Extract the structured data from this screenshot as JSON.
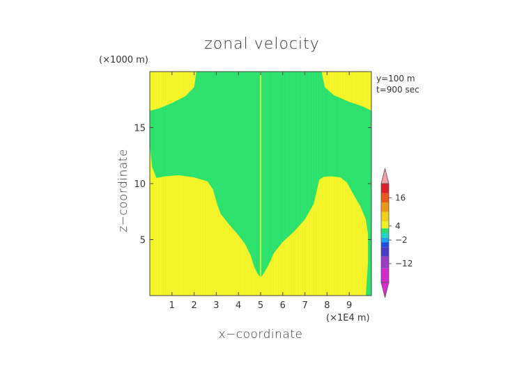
{
  "chart_data": {
    "type": "heatmap",
    "title": "zonal velocity",
    "xlabel": "x−coordinate",
    "ylabel": "z−coordinate",
    "x_unit": "(×1E4 m)",
    "y_unit": "(×1000 m)",
    "annotations": [
      "y=100 m",
      "t=900 sec"
    ],
    "xlim": [
      0,
      10
    ],
    "ylim": [
      0,
      20
    ],
    "x_ticks": [
      1,
      2,
      3,
      4,
      5,
      6,
      7,
      8,
      9
    ],
    "y_ticks": [
      5,
      10,
      15
    ],
    "background_value_color": "#f5f52a",
    "regions": [
      {
        "name": "left green region",
        "color": "#2ee36e",
        "polygon": [
          [
            0,
            16.5
          ],
          [
            0.4,
            16.7
          ],
          [
            1.0,
            17.2
          ],
          [
            1.6,
            17.8
          ],
          [
            2.0,
            18.6
          ],
          [
            2.1,
            20
          ],
          [
            5.0,
            20
          ],
          [
            5.0,
            1.6
          ],
          [
            4.85,
            2.0
          ],
          [
            4.7,
            2.6
          ],
          [
            4.55,
            3.6
          ],
          [
            4.3,
            4.6
          ],
          [
            4.0,
            5.4
          ],
          [
            3.6,
            6.3
          ],
          [
            3.2,
            7.3
          ],
          [
            3.05,
            8.1
          ],
          [
            2.85,
            9.5
          ],
          [
            2.6,
            10.2
          ],
          [
            2.0,
            10.55
          ],
          [
            1.3,
            10.75
          ],
          [
            0.7,
            10.65
          ],
          [
            0.3,
            10.5
          ],
          [
            0.1,
            11.5
          ],
          [
            0,
            13.5
          ]
        ]
      },
      {
        "name": "right green region",
        "color": "#2ee36e",
        "polygon": [
          [
            5.0,
            1.6
          ],
          [
            5.15,
            2.0
          ],
          [
            5.35,
            2.7
          ],
          [
            5.6,
            3.8
          ],
          [
            6.0,
            4.8
          ],
          [
            6.5,
            5.7
          ],
          [
            7.0,
            6.8
          ],
          [
            7.4,
            8.2
          ],
          [
            7.55,
            9.5
          ],
          [
            7.65,
            10.35
          ],
          [
            7.85,
            10.6
          ],
          [
            8.2,
            10.65
          ],
          [
            8.6,
            10.55
          ],
          [
            8.9,
            10.1
          ],
          [
            9.2,
            9.0
          ],
          [
            9.5,
            8.0
          ],
          [
            9.75,
            6.8
          ],
          [
            9.85,
            5.5
          ],
          [
            9.85,
            3.0
          ],
          [
            9.75,
            0
          ],
          [
            10,
            0
          ],
          [
            10,
            20
          ],
          [
            5.0,
            20
          ]
        ]
      },
      {
        "name": "top-right yellow patch",
        "color": "#f5f52a",
        "polygon": [
          [
            7.75,
            20
          ],
          [
            7.9,
            18.6
          ],
          [
            8.3,
            17.9
          ],
          [
            9.0,
            17.3
          ],
          [
            9.6,
            16.9
          ],
          [
            10,
            16.5
          ],
          [
            10,
            20
          ]
        ]
      }
    ],
    "colorbar": {
      "labels": [
        "16",
        "4",
        "−2",
        "−12"
      ],
      "label_values": [
        16,
        4,
        -2,
        -12
      ],
      "range": [
        -20,
        22
      ],
      "extend": "both",
      "color_stops": [
        {
          "value": -20,
          "color": "#d82cd2"
        },
        {
          "value": -14,
          "color": "#a03cc8"
        },
        {
          "value": -9,
          "color": "#4b3ccf"
        },
        {
          "value": -5,
          "color": "#1f4fe6"
        },
        {
          "value": -3,
          "color": "#1ca6f0"
        },
        {
          "value": -1,
          "color": "#26d8c8"
        },
        {
          "value": 1,
          "color": "#2ee36e"
        },
        {
          "value": 3,
          "color": "#f5f52a"
        },
        {
          "value": 6,
          "color": "#f7d21f"
        },
        {
          "value": 10,
          "color": "#f09a1c"
        },
        {
          "value": 14,
          "color": "#ee5a1f"
        },
        {
          "value": 18,
          "color": "#e2202a"
        },
        {
          "value": 22,
          "color": "#f2a0a8"
        }
      ]
    }
  }
}
